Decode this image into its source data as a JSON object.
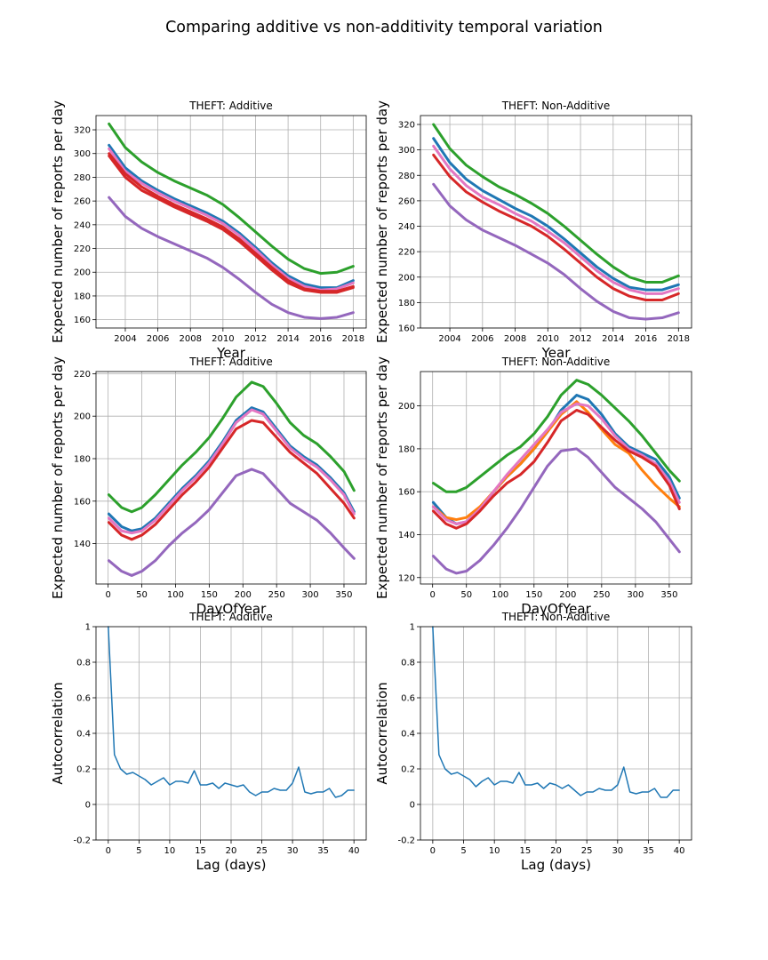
{
  "figure": {
    "title": "Comparing additive vs non-additivity temporal variation",
    "colors": {
      "green": "#2ca02c",
      "blue": "#1f77b4",
      "orange": "#ff7f0e",
      "pink": "#e377c2",
      "red": "#d62728",
      "purple": "#9467bd",
      "grid": "#b0b0b0"
    }
  },
  "chart_data": [
    {
      "id": "year-additive",
      "type": "line",
      "title": "THEFT: Additive",
      "xlabel": "Year",
      "ylabel": "Expected number of reports per day",
      "xlim": [
        2002.2,
        2018.8
      ],
      "ylim": [
        153,
        332
      ],
      "xticks": [
        2004,
        2006,
        2008,
        2010,
        2012,
        2014,
        2016,
        2018
      ],
      "yticks": [
        160,
        180,
        200,
        220,
        240,
        260,
        280,
        300,
        320
      ],
      "grid": true,
      "x": [
        2003,
        2004,
        2005,
        2006,
        2007,
        2008,
        2009,
        2010,
        2011,
        2012,
        2013,
        2014,
        2015,
        2016,
        2017,
        2018
      ],
      "series": [
        {
          "color": "#2ca02c",
          "values": [
            325,
            305,
            293,
            284,
            277,
            271,
            265,
            257,
            246,
            234,
            222,
            211,
            203,
            199,
            200,
            205
          ]
        },
        {
          "color": "#1f77b4",
          "values": [
            307,
            288,
            277,
            269,
            262,
            256,
            250,
            243,
            233,
            221,
            208,
            197,
            190,
            187,
            187,
            193
          ]
        },
        {
          "color": "#e377c2",
          "values": [
            304,
            285,
            275,
            267,
            260,
            254,
            248,
            241,
            231,
            219,
            206,
            195,
            188,
            185,
            186,
            191
          ]
        },
        {
          "color": "#d62728",
          "values": [
            300,
            283,
            272,
            264,
            257,
            251,
            245,
            238,
            228,
            216,
            204,
            193,
            186,
            184,
            184,
            188
          ]
        },
        {
          "color": "#d62728",
          "values": [
            298,
            280,
            269,
            262,
            255,
            249,
            243,
            236,
            226,
            214,
            202,
            191,
            185,
            183,
            183,
            187
          ]
        },
        {
          "color": "#9467bd",
          "values": [
            263,
            247,
            237,
            230,
            224,
            218,
            212,
            204,
            194,
            183,
            173,
            166,
            162,
            161,
            162,
            166
          ]
        }
      ]
    },
    {
      "id": "year-nonadditive",
      "type": "line",
      "title": "THEFT: Non-Additive",
      "xlabel": "Year",
      "ylabel": "Expected number of reports per day",
      "xlim": [
        2002.2,
        2018.8
      ],
      "ylim": [
        160,
        327
      ],
      "xticks": [
        2004,
        2006,
        2008,
        2010,
        2012,
        2014,
        2016,
        2018
      ],
      "yticks": [
        160,
        180,
        200,
        220,
        240,
        260,
        280,
        300,
        320
      ],
      "grid": true,
      "x": [
        2003,
        2004,
        2005,
        2006,
        2007,
        2008,
        2009,
        2010,
        2011,
        2012,
        2013,
        2014,
        2015,
        2016,
        2017,
        2018
      ],
      "series": [
        {
          "color": "#2ca02c",
          "values": [
            320,
            301,
            288,
            279,
            271,
            265,
            258,
            250,
            240,
            229,
            218,
            208,
            200,
            196,
            196,
            201
          ]
        },
        {
          "color": "#1f77b4",
          "values": [
            309,
            290,
            277,
            268,
            261,
            254,
            248,
            240,
            230,
            219,
            208,
            199,
            192,
            190,
            190,
            194
          ]
        },
        {
          "color": "#e377c2",
          "values": [
            303,
            285,
            272,
            263,
            257,
            250,
            244,
            236,
            227,
            216,
            205,
            196,
            190,
            187,
            187,
            191
          ]
        },
        {
          "color": "#d62728",
          "values": [
            296,
            279,
            267,
            259,
            252,
            246,
            240,
            232,
            222,
            211,
            200,
            191,
            185,
            182,
            182,
            187
          ]
        },
        {
          "color": "#9467bd",
          "values": [
            273,
            256,
            245,
            237,
            231,
            225,
            218,
            211,
            202,
            191,
            181,
            173,
            168,
            167,
            168,
            172
          ]
        }
      ]
    },
    {
      "id": "doy-additive",
      "type": "line",
      "title": "THEFT: Additive",
      "xlabel": "DayOfYear",
      "ylabel": "Expected number of reports per day",
      "xlim": [
        -18,
        383
      ],
      "ylim": [
        121,
        221
      ],
      "xticks": [
        0,
        50,
        100,
        150,
        200,
        250,
        300,
        350
      ],
      "yticks": [
        140,
        160,
        180,
        200,
        220
      ],
      "grid": true,
      "x": [
        1,
        20,
        35,
        50,
        70,
        90,
        110,
        130,
        150,
        170,
        190,
        213,
        230,
        250,
        270,
        290,
        310,
        330,
        350,
        365
      ],
      "series": [
        {
          "color": "#2ca02c",
          "values": [
            163,
            157,
            155,
            157,
            163,
            170,
            177,
            183,
            190,
            199,
            209,
            216,
            214,
            206,
            197,
            191,
            187,
            181,
            174,
            165
          ]
        },
        {
          "color": "#1f77b4",
          "values": [
            154,
            148,
            146,
            147,
            152,
            159,
            166,
            172,
            179,
            188,
            198,
            204,
            202,
            194,
            186,
            181,
            177,
            171,
            164,
            155
          ]
        },
        {
          "color": "#e377c2",
          "values": [
            152,
            146,
            145,
            146,
            151,
            158,
            165,
            171,
            178,
            187,
            197,
            203,
            201,
            193,
            185,
            180,
            176,
            170,
            163,
            154
          ]
        },
        {
          "color": "#d62728",
          "values": [
            150,
            144,
            142,
            144,
            149,
            156,
            163,
            169,
            176,
            185,
            194,
            198,
            197,
            190,
            183,
            178,
            173,
            166,
            159,
            152
          ]
        },
        {
          "color": "#9467bd",
          "values": [
            132,
            127,
            125,
            127,
            132,
            139,
            145,
            150,
            156,
            164,
            172,
            175,
            173,
            166,
            159,
            155,
            151,
            145,
            138,
            133
          ]
        }
      ]
    },
    {
      "id": "doy-nonadditive",
      "type": "line",
      "title": "THEFT: Non-Additive",
      "xlabel": "DayOfYear",
      "ylabel": "Expected number of reports per day",
      "xlim": [
        -18,
        383
      ],
      "ylim": [
        117,
        216
      ],
      "xticks": [
        0,
        50,
        100,
        150,
        200,
        250,
        300,
        350
      ],
      "yticks": [
        120,
        140,
        160,
        180,
        200
      ],
      "grid": true,
      "x": [
        1,
        20,
        35,
        50,
        70,
        90,
        110,
        130,
        150,
        170,
        190,
        213,
        230,
        250,
        270,
        290,
        310,
        330,
        350,
        365
      ],
      "series": [
        {
          "color": "#2ca02c",
          "values": [
            164,
            160,
            160,
            162,
            167,
            172,
            177,
            181,
            187,
            195,
            205,
            212,
            210,
            205,
            199,
            193,
            186,
            178,
            170,
            165
          ]
        },
        {
          "color": "#1f77b4",
          "values": [
            155,
            148,
            145,
            146,
            152,
            160,
            167,
            173,
            180,
            188,
            198,
            205,
            203,
            196,
            187,
            181,
            178,
            175,
            167,
            157
          ]
        },
        {
          "color": "#ff7f0e",
          "values": [
            153,
            148,
            147,
            148,
            153,
            160,
            167,
            173,
            180,
            188,
            196,
            202,
            197,
            189,
            182,
            178,
            170,
            163,
            157,
            153
          ]
        },
        {
          "color": "#e377c2",
          "values": [
            153,
            147,
            145,
            146,
            152,
            160,
            168,
            175,
            182,
            189,
            197,
            201,
            200,
            194,
            186,
            180,
            177,
            173,
            165,
            155
          ]
        },
        {
          "color": "#d62728",
          "values": [
            151,
            145,
            143,
            145,
            151,
            158,
            164,
            168,
            174,
            183,
            193,
            198,
            196,
            190,
            184,
            179,
            176,
            172,
            163,
            152
          ]
        },
        {
          "color": "#9467bd",
          "values": [
            130,
            124,
            122,
            123,
            128,
            135,
            143,
            152,
            162,
            172,
            179,
            180,
            176,
            169,
            162,
            157,
            152,
            146,
            138,
            132
          ]
        }
      ]
    },
    {
      "id": "acf-additive",
      "type": "line",
      "title": "THEFT: Additive",
      "xlabel": "Lag (days)",
      "ylabel": "Autocorrelation",
      "xlim": [
        -2,
        42
      ],
      "ylim": [
        -0.2,
        1.0
      ],
      "xticks": [
        0,
        5,
        10,
        15,
        20,
        25,
        30,
        35,
        40
      ],
      "yticks": [
        -0.2,
        0.0,
        0.2,
        0.4,
        0.6,
        0.8,
        1.0
      ],
      "grid": true,
      "x": [
        0,
        1,
        2,
        3,
        4,
        5,
        6,
        7,
        8,
        9,
        10,
        11,
        12,
        13,
        14,
        15,
        16,
        17,
        18,
        19,
        20,
        21,
        22,
        23,
        24,
        25,
        26,
        27,
        28,
        29,
        30,
        31,
        32,
        33,
        34,
        35,
        36,
        37,
        38,
        39,
        40
      ],
      "series": [
        {
          "color": "#1f77b4",
          "values": [
            1.0,
            0.28,
            0.2,
            0.17,
            0.18,
            0.16,
            0.14,
            0.11,
            0.13,
            0.15,
            0.11,
            0.13,
            0.13,
            0.12,
            0.19,
            0.11,
            0.11,
            0.12,
            0.09,
            0.12,
            0.11,
            0.1,
            0.11,
            0.07,
            0.05,
            0.07,
            0.07,
            0.09,
            0.08,
            0.08,
            0.12,
            0.21,
            0.07,
            0.06,
            0.07,
            0.07,
            0.09,
            0.04,
            0.05,
            0.08,
            0.08
          ]
        }
      ]
    },
    {
      "id": "acf-nonadditive",
      "type": "line",
      "title": "THEFT: Non-Additive",
      "xlabel": "Lag (days)",
      "ylabel": "Autocorrelation",
      "xlim": [
        -2,
        42
      ],
      "ylim": [
        -0.2,
        1.0
      ],
      "xticks": [
        0,
        5,
        10,
        15,
        20,
        25,
        30,
        35,
        40
      ],
      "yticks": [
        -0.2,
        0.0,
        0.2,
        0.4,
        0.6,
        0.8,
        1.0
      ],
      "grid": true,
      "x": [
        0,
        1,
        2,
        3,
        4,
        5,
        6,
        7,
        8,
        9,
        10,
        11,
        12,
        13,
        14,
        15,
        16,
        17,
        18,
        19,
        20,
        21,
        22,
        23,
        24,
        25,
        26,
        27,
        28,
        29,
        30,
        31,
        32,
        33,
        34,
        35,
        36,
        37,
        38,
        39,
        40
      ],
      "series": [
        {
          "color": "#1f77b4",
          "values": [
            1.0,
            0.28,
            0.2,
            0.17,
            0.18,
            0.16,
            0.14,
            0.1,
            0.13,
            0.15,
            0.11,
            0.13,
            0.13,
            0.12,
            0.18,
            0.11,
            0.11,
            0.12,
            0.09,
            0.12,
            0.11,
            0.09,
            0.11,
            0.08,
            0.05,
            0.07,
            0.07,
            0.09,
            0.08,
            0.08,
            0.11,
            0.21,
            0.07,
            0.06,
            0.07,
            0.07,
            0.09,
            0.04,
            0.04,
            0.08,
            0.08
          ]
        }
      ]
    }
  ]
}
